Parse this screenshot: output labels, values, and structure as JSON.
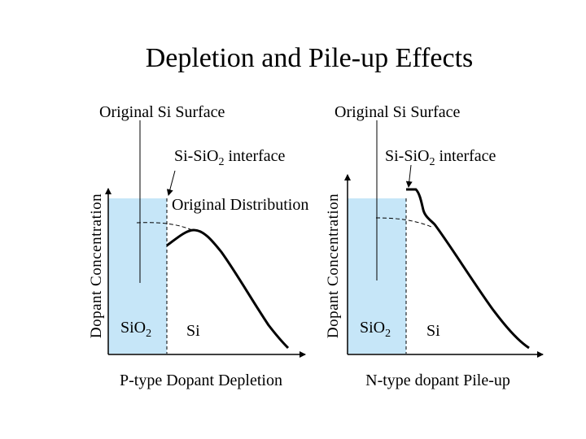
{
  "title": "Depletion and Pile-up Effects",
  "colors": {
    "oxide_fill": "#c6e6f8",
    "curve": "#000000",
    "axis": "#000000"
  },
  "panels": [
    {
      "id": "left",
      "original_surface_label": "Original Si Surface",
      "interface_label_prefix": "Si-SiO",
      "interface_label_sub": "2",
      "interface_label_suffix": " interface",
      "original_distribution_label": "Original Distribution",
      "y_axis_label": "Dopant Concentration",
      "oxide_label_prefix": "SiO",
      "oxide_label_sub": "2",
      "si_label": "Si",
      "caption": "P-type Dopant Depletion"
    },
    {
      "id": "right",
      "original_surface_label": "Original Si Surface",
      "interface_label_prefix": "Si-SiO",
      "interface_label_sub": "2",
      "interface_label_suffix": " interface",
      "y_axis_label": "Dopant Concentration",
      "oxide_label_prefix": "SiO",
      "oxide_label_sub": "2",
      "si_label": "Si",
      "caption": "N-type dopant Pile-up"
    }
  ]
}
